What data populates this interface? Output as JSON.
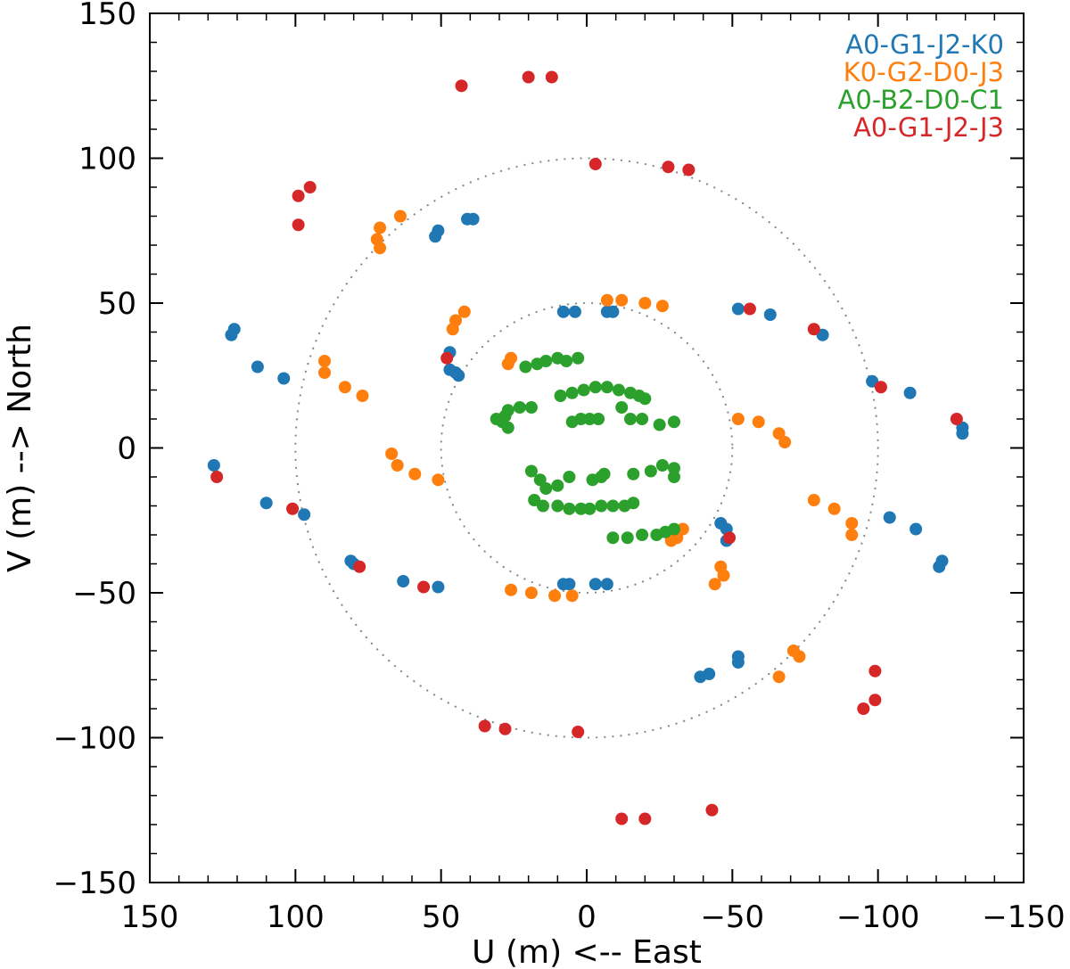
{
  "chart_data": {
    "type": "scatter",
    "xlabel": "U (m) <-- East",
    "ylabel": "V (m) --> North",
    "xlim": [
      150,
      -150
    ],
    "ylim": [
      -150,
      150
    ],
    "xticks": [
      150,
      100,
      50,
      0,
      -50,
      -100,
      -150
    ],
    "yticks": [
      -150,
      -100,
      -50,
      0,
      50,
      100,
      150
    ],
    "xtick_labels": [
      "150",
      "100",
      "50",
      "0",
      "−50",
      "−100",
      "−150"
    ],
    "ytick_labels": [
      "−150",
      "−100",
      "−50",
      "0",
      "50",
      "100",
      "150"
    ],
    "grid": false,
    "legend_position": "top-right",
    "reference_circles": [
      {
        "radius": 50
      },
      {
        "radius": 100
      }
    ],
    "series": [
      {
        "name": "A0-G1-J2-K0",
        "color": "#1f77b4",
        "points": [
          [
            128,
            -6
          ],
          [
            122,
            39
          ],
          [
            121,
            41
          ],
          [
            113,
            28
          ],
          [
            104,
            24
          ],
          [
            110,
            -19
          ],
          [
            97,
            -23
          ],
          [
            81,
            -39
          ],
          [
            80,
            -40
          ],
          [
            63,
            -46
          ],
          [
            51,
            -48
          ],
          [
            52,
            73
          ],
          [
            51,
            75
          ],
          [
            41,
            79
          ],
          [
            39,
            79
          ],
          [
            47,
            33
          ],
          [
            47,
            27
          ],
          [
            45,
            26
          ],
          [
            44,
            25
          ],
          [
            8,
            47
          ],
          [
            4,
            47
          ],
          [
            -7,
            47
          ],
          [
            -9,
            47
          ],
          [
            8,
            -47
          ],
          [
            6,
            -47
          ],
          [
            -3,
            -47
          ],
          [
            -7,
            -47
          ],
          [
            -46,
            -26
          ],
          [
            -48,
            -28
          ],
          [
            -48,
            -32
          ],
          [
            -52,
            48
          ],
          [
            -63,
            46
          ],
          [
            -81,
            39
          ],
          [
            -98,
            23
          ],
          [
            -111,
            19
          ],
          [
            -129,
            7
          ],
          [
            -129,
            5
          ],
          [
            -39,
            -79
          ],
          [
            -42,
            -78
          ],
          [
            -52,
            -74
          ],
          [
            -52,
            -72
          ],
          [
            -104,
            -24
          ],
          [
            -113,
            -28
          ],
          [
            -121,
            -41
          ],
          [
            -122,
            -39
          ]
        ]
      },
      {
        "name": "K0-G2-D0-J3",
        "color": "#ff7f0e",
        "points": [
          [
            64,
            80
          ],
          [
            71,
            76
          ],
          [
            72,
            72
          ],
          [
            71,
            69
          ],
          [
            45,
            44
          ],
          [
            46,
            41
          ],
          [
            42,
            47
          ],
          [
            90,
            30
          ],
          [
            90,
            26
          ],
          [
            83,
            21
          ],
          [
            77,
            18
          ],
          [
            67,
            -2
          ],
          [
            65,
            -6
          ],
          [
            59,
            -9
          ],
          [
            51,
            -11
          ],
          [
            27,
            29
          ],
          [
            26,
            31
          ],
          [
            -7,
            51
          ],
          [
            -12,
            51
          ],
          [
            -20,
            50
          ],
          [
            -26,
            49
          ],
          [
            -52,
            10
          ],
          [
            -59,
            9
          ],
          [
            -66,
            5
          ],
          [
            -68,
            2
          ],
          [
            26,
            -49
          ],
          [
            19,
            -50
          ],
          [
            11,
            -51
          ],
          [
            5,
            -51
          ],
          [
            -29,
            -32
          ],
          [
            -31,
            -31
          ],
          [
            -33,
            -28
          ],
          [
            -44,
            -47
          ],
          [
            -46,
            -41
          ],
          [
            -47,
            -44
          ],
          [
            -66,
            -79
          ],
          [
            -71,
            -70
          ],
          [
            -73,
            -72
          ],
          [
            -78,
            -18
          ],
          [
            -85,
            -21
          ],
          [
            -91,
            -26
          ],
          [
            -91,
            -30
          ]
        ]
      },
      {
        "name": "A0-B2-D0-C1",
        "color": "#2ca02c",
        "points": [
          [
            29,
            9
          ],
          [
            28,
            11
          ],
          [
            27,
            13
          ],
          [
            23,
            14
          ],
          [
            19,
            14
          ],
          [
            31,
            10
          ],
          [
            27,
            7
          ],
          [
            -12,
            14
          ],
          [
            -15,
            10
          ],
          [
            -19,
            10
          ],
          [
            -25,
            8
          ],
          [
            -30,
            9
          ],
          [
            5,
            9
          ],
          [
            2,
            10
          ],
          [
            -1,
            10
          ],
          [
            -4,
            10
          ],
          [
            -16,
            -9
          ],
          [
            -22,
            -8
          ],
          [
            -26,
            -6
          ],
          [
            -30,
            -7
          ],
          [
            -30,
            -10
          ],
          [
            19,
            -8
          ],
          [
            16,
            -11
          ],
          [
            14,
            -14
          ],
          [
            10,
            -13
          ],
          [
            17,
            29
          ],
          [
            14,
            30
          ],
          [
            10,
            31
          ],
          [
            7,
            30
          ],
          [
            3,
            31
          ],
          [
            21,
            28
          ],
          [
            -30,
            -28
          ],
          [
            -27,
            -29
          ],
          [
            -24,
            -30
          ],
          [
            -19,
            -30
          ],
          [
            -14,
            -31
          ],
          [
            -9,
            -31
          ],
          [
            -16,
            -19
          ],
          [
            -13,
            -20
          ],
          [
            -9,
            -20
          ],
          [
            -5,
            -20
          ],
          [
            -1,
            -21
          ],
          [
            2,
            -21
          ],
          [
            6,
            -21
          ],
          [
            10,
            -20
          ],
          [
            15,
            -20
          ],
          [
            18,
            -18
          ],
          [
            9,
            18
          ],
          [
            5,
            19
          ],
          [
            1,
            20
          ],
          [
            -3,
            21
          ],
          [
            -7,
            21
          ],
          [
            -11,
            20
          ],
          [
            -15,
            19
          ],
          [
            -18,
            18
          ],
          [
            -20,
            17
          ],
          [
            6,
            -10
          ],
          [
            -5,
            -10
          ],
          [
            -6,
            -9
          ],
          [
            -2,
            -11
          ]
        ]
      },
      {
        "name": "A0-G1-J2-J3",
        "color": "#d62728",
        "points": [
          [
            43,
            125
          ],
          [
            20,
            128
          ],
          [
            12,
            128
          ],
          [
            -3,
            98
          ],
          [
            -28,
            97
          ],
          [
            -35,
            96
          ],
          [
            99,
            87
          ],
          [
            95,
            90
          ],
          [
            99,
            77
          ],
          [
            127,
            -10
          ],
          [
            101,
            -21
          ],
          [
            78,
            -41
          ],
          [
            56,
            -48
          ],
          [
            48,
            31
          ],
          [
            -49,
            -31
          ],
          [
            -56,
            48
          ],
          [
            -78,
            41
          ],
          [
            -101,
            21
          ],
          [
            -127,
            10
          ],
          [
            35,
            -96
          ],
          [
            28,
            -97
          ],
          [
            3,
            -98
          ],
          [
            -12,
            -128
          ],
          [
            -20,
            -128
          ],
          [
            -43,
            -125
          ],
          [
            -95,
            -90
          ],
          [
            -99,
            -87
          ],
          [
            -99,
            -77
          ]
        ]
      }
    ]
  }
}
